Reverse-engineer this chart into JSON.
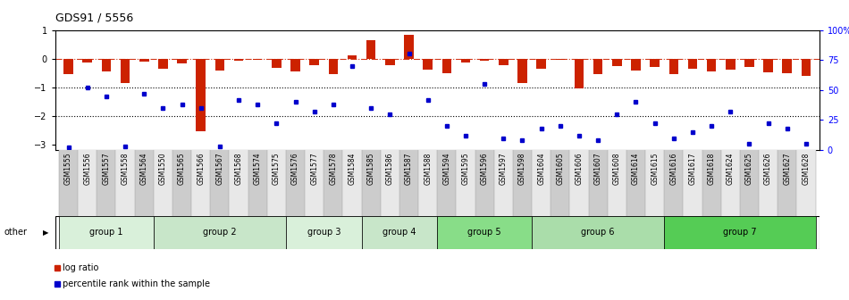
{
  "title": "GDS91 / 5556",
  "samples": [
    "GSM1555",
    "GSM1556",
    "GSM1557",
    "GSM1558",
    "GSM1564",
    "GSM1550",
    "GSM1565",
    "GSM1566",
    "GSM1567",
    "GSM1568",
    "GSM1574",
    "GSM1575",
    "GSM1576",
    "GSM1577",
    "GSM1578",
    "GSM1584",
    "GSM1585",
    "GSM1586",
    "GSM1587",
    "GSM1588",
    "GSM1594",
    "GSM1595",
    "GSM1596",
    "GSM1597",
    "GSM1598",
    "GSM1604",
    "GSM1605",
    "GSM1606",
    "GSM1607",
    "GSM1608",
    "GSM1614",
    "GSM1615",
    "GSM1616",
    "GSM1617",
    "GSM1618",
    "GSM1624",
    "GSM1625",
    "GSM1626",
    "GSM1627",
    "GSM1628"
  ],
  "log_ratio": [
    -0.55,
    -0.15,
    -0.45,
    -0.85,
    -0.12,
    -0.35,
    -0.18,
    -2.55,
    -0.42,
    -0.08,
    -0.05,
    -0.32,
    -0.45,
    -0.22,
    -0.55,
    0.12,
    0.65,
    -0.22,
    0.82,
    -0.38,
    -0.52,
    -0.15,
    -0.08,
    -0.22,
    -0.85,
    -0.35,
    -0.05,
    -1.05,
    -0.55,
    -0.25,
    -0.42,
    -0.28,
    -0.55,
    -0.35,
    -0.45,
    -0.38,
    -0.28,
    -0.48,
    -0.52,
    -0.62
  ],
  "percentile": [
    2,
    52,
    45,
    3,
    47,
    35,
    38,
    35,
    3,
    42,
    38,
    22,
    40,
    32,
    38,
    70,
    35,
    30,
    80,
    42,
    20,
    12,
    55,
    10,
    8,
    18,
    20,
    12,
    8,
    30,
    40,
    22,
    10,
    15,
    20,
    32,
    5,
    22,
    18,
    5
  ],
  "group_defs": [
    {
      "label": "group 1",
      "start": 0,
      "end": 4,
      "color": "#d9f0da"
    },
    {
      "label": "group 2",
      "start": 5,
      "end": 11,
      "color": "#c8e6c9"
    },
    {
      "label": "group 3",
      "start": 12,
      "end": 15,
      "color": "#d9f0da"
    },
    {
      "label": "group 4",
      "start": 16,
      "end": 19,
      "color": "#c8e6c9"
    },
    {
      "label": "group 5",
      "start": 20,
      "end": 24,
      "color": "#88dd88"
    },
    {
      "label": "group 6",
      "start": 25,
      "end": 31,
      "color": "#aaddaa"
    },
    {
      "label": "group 7",
      "start": 32,
      "end": 39,
      "color": "#55cc55"
    }
  ],
  "bar_color": "#cc2200",
  "dot_color": "#0000cc",
  "ylim_left": [
    -3.2,
    1.0
  ],
  "ylim_right": [
    0,
    100
  ],
  "yticks_left": [
    -3,
    -2,
    -1,
    0,
    1
  ],
  "yticks_right": [
    0,
    25,
    50,
    75,
    100
  ],
  "ytick_right_labels": [
    "0",
    "25",
    "50",
    "75",
    "100%"
  ],
  "legend": [
    {
      "label": "log ratio",
      "color": "#cc2200"
    },
    {
      "label": "percentile rank within the sample",
      "color": "#0000cc"
    }
  ]
}
